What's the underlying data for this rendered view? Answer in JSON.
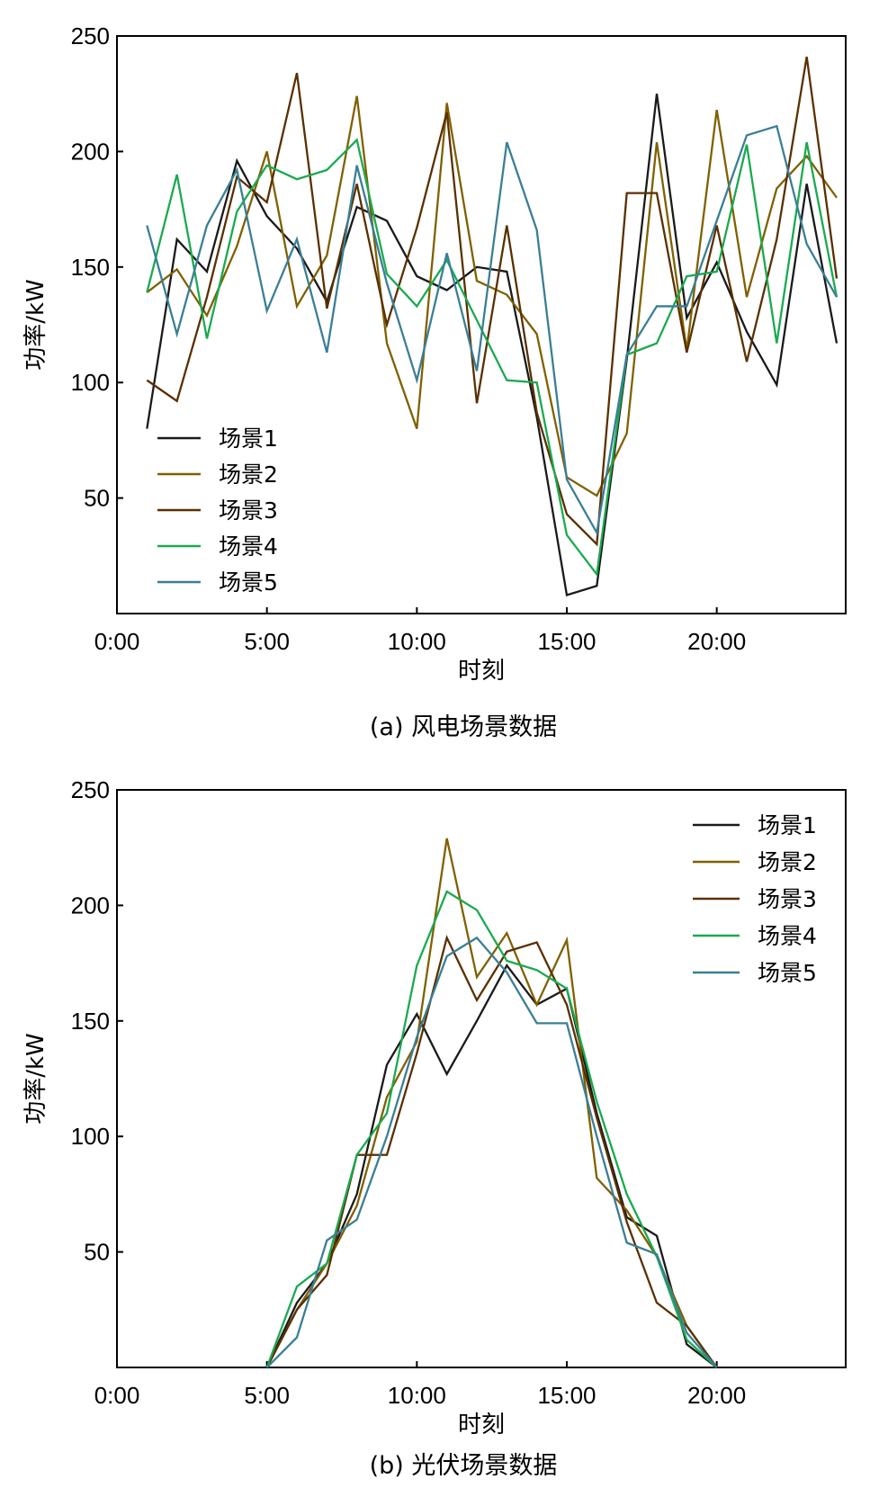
{
  "colors": [
    "#1a1a1a",
    "#806000",
    "#5a3000",
    "#1aaa50",
    "#3a7f95"
  ],
  "chart_data": [
    {
      "type": "line",
      "caption": "(a) 风电场景数据",
      "xlabel": "时刻",
      "ylabel": "功率/kW",
      "xlim": [
        0,
        24.3
      ],
      "ylim": [
        0,
        250
      ],
      "xticks": [
        0,
        5,
        10,
        15,
        20
      ],
      "xtick_labels": [
        "0:00",
        "5:00",
        "10:00",
        "15:00",
        "20:00"
      ],
      "yticks": [
        50,
        100,
        150,
        200,
        250
      ],
      "ytick_labels": [
        "50",
        "100",
        "150",
        "200",
        "250"
      ],
      "legend_position": "bottom-left",
      "x": [
        1,
        2,
        3,
        4,
        5,
        6,
        7,
        8,
        9,
        10,
        11,
        12,
        13,
        14,
        15,
        16,
        17,
        18,
        19,
        20,
        21,
        22,
        23,
        24
      ],
      "series": [
        {
          "name": "场景1",
          "values": [
            80,
            162,
            148,
            196,
            172,
            158,
            135,
            176,
            170,
            146,
            140,
            150,
            148,
            85,
            8,
            12,
            110,
            225,
            128,
            152,
            122,
            99,
            186,
            117
          ]
        },
        {
          "name": "场景2",
          "values": [
            139,
            149,
            129,
            159,
            200,
            133,
            155,
            224,
            117,
            80,
            221,
            144,
            138,
            121,
            59,
            51,
            78,
            204,
            114,
            218,
            137,
            184,
            198,
            180
          ]
        },
        {
          "name": "场景3",
          "values": [
            101,
            92,
            137,
            189,
            178,
            234,
            132,
            186,
            125,
            167,
            217,
            91,
            168,
            87,
            43,
            30,
            182,
            182,
            113,
            168,
            109,
            162,
            241,
            145
          ]
        },
        {
          "name": "场景4",
          "values": [
            139,
            190,
            119,
            174,
            194,
            188,
            192,
            205,
            147,
            133,
            153,
            127,
            101,
            100,
            34,
            17,
            112,
            117,
            146,
            148,
            203,
            117,
            204,
            137
          ]
        },
        {
          "name": "场景5",
          "values": [
            168,
            121,
            168,
            192,
            131,
            162,
            113,
            194,
            143,
            101,
            156,
            105,
            204,
            166,
            58,
            35,
            112,
            133,
            133,
            170,
            207,
            211,
            160,
            137
          ]
        }
      ]
    },
    {
      "type": "line",
      "caption": "(b) 光伏场景数据",
      "xlabel": "时刻",
      "ylabel": "功率/kW",
      "xlim": [
        0,
        24.3
      ],
      "ylim": [
        0,
        250
      ],
      "xticks": [
        0,
        5,
        10,
        15,
        20
      ],
      "xtick_labels": [
        "0:00",
        "5:00",
        "10:00",
        "15:00",
        "20:00"
      ],
      "yticks": [
        50,
        100,
        150,
        200,
        250
      ],
      "ytick_labels": [
        "50",
        "100",
        "150",
        "200",
        "250"
      ],
      "legend_position": "top-right",
      "x": [
        5,
        6,
        7,
        8,
        9,
        10,
        11,
        12,
        13,
        14,
        15,
        16,
        17,
        18,
        19,
        20
      ],
      "series": [
        {
          "name": "场景1",
          "values": [
            0,
            28,
            45,
            75,
            131,
            153,
            127,
            150,
            174,
            157,
            164,
            110,
            65,
            57,
            10,
            0
          ]
        },
        {
          "name": "场景2",
          "values": [
            0,
            25,
            45,
            70,
            117,
            141,
            229,
            169,
            188,
            157,
            185,
            82,
            68,
            48,
            18,
            0
          ]
        },
        {
          "name": "场景3",
          "values": [
            0,
            25,
            40,
            92,
            92,
            136,
            186,
            159,
            180,
            184,
            157,
            108,
            63,
            28,
            18,
            0
          ]
        },
        {
          "name": "场景4",
          "values": [
            0,
            35,
            45,
            92,
            110,
            174,
            206,
            198,
            176,
            172,
            164,
            115,
            75,
            48,
            12,
            0
          ]
        },
        {
          "name": "场景5",
          "values": [
            0,
            13,
            55,
            64,
            100,
            143,
            178,
            186,
            171,
            149,
            149,
            100,
            54,
            49,
            15,
            0
          ]
        }
      ]
    }
  ]
}
